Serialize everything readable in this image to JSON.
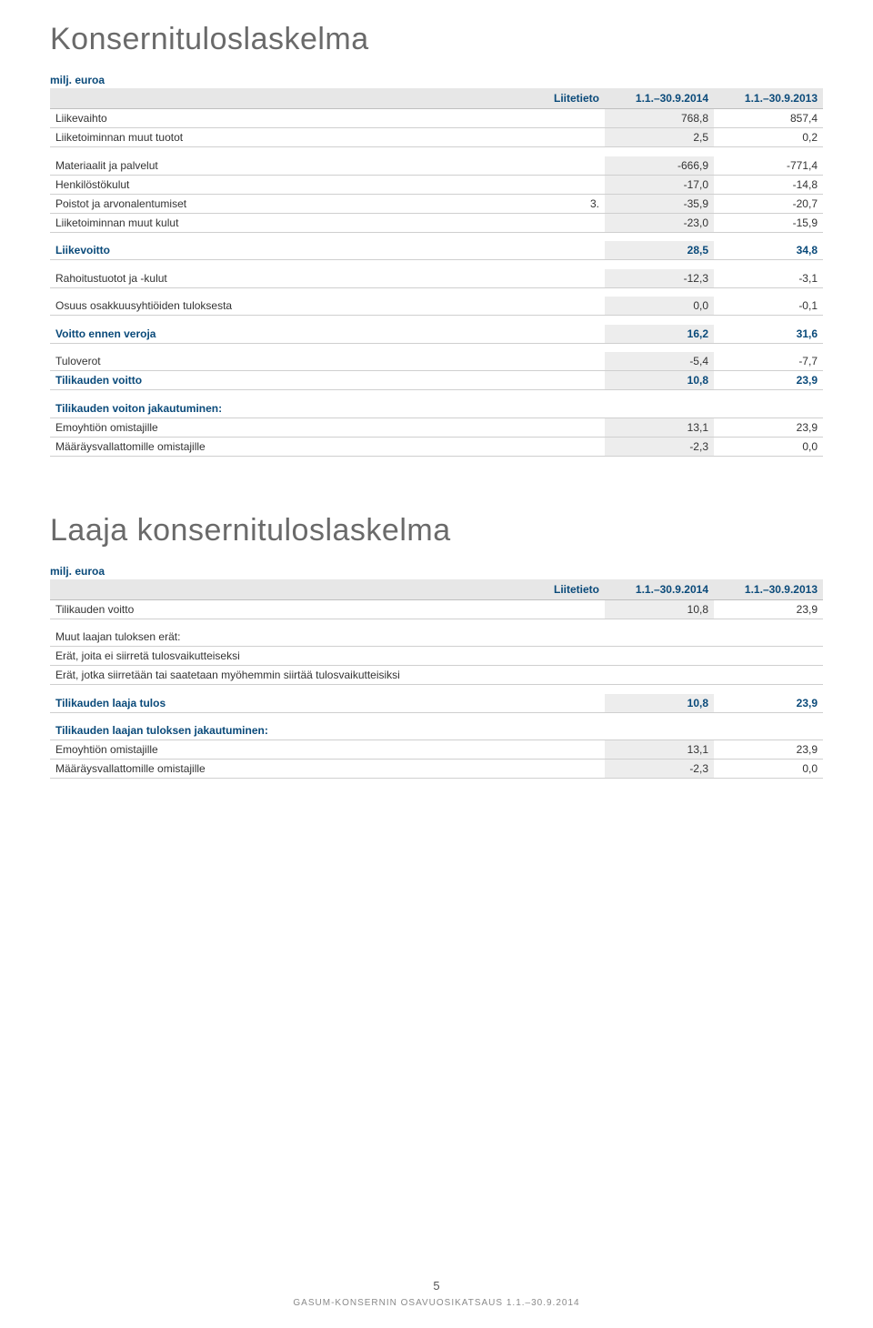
{
  "title1": "Konsernituloslaskelma",
  "title2": "Laaja konsernituloslaskelma",
  "unit": "milj. euroa",
  "header": {
    "liite": "Liitetieto",
    "col2014": "1.1.–30.9.2014",
    "col2013": "1.1.–30.9.2013"
  },
  "t1": {
    "r1": {
      "l": "Liikevaihto",
      "a": "768,8",
      "b": "857,4"
    },
    "r2": {
      "l": "Liiketoiminnan muut tuotot",
      "a": "2,5",
      "b": "0,2"
    },
    "r3": {
      "l": "Materiaalit ja palvelut",
      "a": "-666,9",
      "b": "-771,4"
    },
    "r4": {
      "l": "Henkilöstökulut",
      "a": "-17,0",
      "b": "-14,8"
    },
    "r5": {
      "l": "Poistot ja arvonalentumiset",
      "n": "3.",
      "a": "-35,9",
      "b": "-20,7"
    },
    "r6": {
      "l": "Liiketoiminnan muut kulut",
      "a": "-23,0",
      "b": "-15,9"
    },
    "r7": {
      "l": "Liikevoitto",
      "a": "28,5",
      "b": "34,8"
    },
    "r8": {
      "l": "Rahoitustuotot ja -kulut",
      "a": "-12,3",
      "b": "-3,1"
    },
    "r9": {
      "l": "Osuus osakkuusyhtiöiden tuloksesta",
      "a": "0,0",
      "b": "-0,1"
    },
    "r10": {
      "l": "Voitto ennen veroja",
      "a": "16,2",
      "b": "31,6"
    },
    "r11": {
      "l": "Tuloverot",
      "a": "-5,4",
      "b": "-7,7"
    },
    "r12": {
      "l": "Tilikauden voitto",
      "a": "10,8",
      "b": "23,9"
    },
    "r13": {
      "l": "Tilikauden voiton jakautuminen:"
    },
    "r14": {
      "l": "Emoyhtiön omistajille",
      "a": "13,1",
      "b": "23,9"
    },
    "r15": {
      "l": "Määräysvallattomille omistajille",
      "a": "-2,3",
      "b": "0,0"
    }
  },
  "t2": {
    "r1": {
      "l": "Tilikauden voitto",
      "a": "10,8",
      "b": "23,9"
    },
    "r2": {
      "l": "Muut laajan tuloksen erät:"
    },
    "r3": {
      "l": "Erät, joita ei siirretä tulosvaikutteiseksi"
    },
    "r4": {
      "l": "Erät, jotka siirretään tai saatetaan myöhemmin siirtää tulosvaikutteisiksi"
    },
    "r5": {
      "l": "Tilikauden laaja tulos",
      "a": "10,8",
      "b": "23,9"
    },
    "r6": {
      "l": "Tilikauden laajan tuloksen jakautuminen:"
    },
    "r7": {
      "l": "Emoyhtiön omistajille",
      "a": "13,1",
      "b": "23,9"
    },
    "r8": {
      "l": "Määräysvallattomille omistajille",
      "a": "-2,3",
      "b": "0,0"
    }
  },
  "footer": {
    "page": "5",
    "text": "GASUM-KONSERNIN OSAVUOSIKATSAUS 1.1.–30.9.2014"
  }
}
